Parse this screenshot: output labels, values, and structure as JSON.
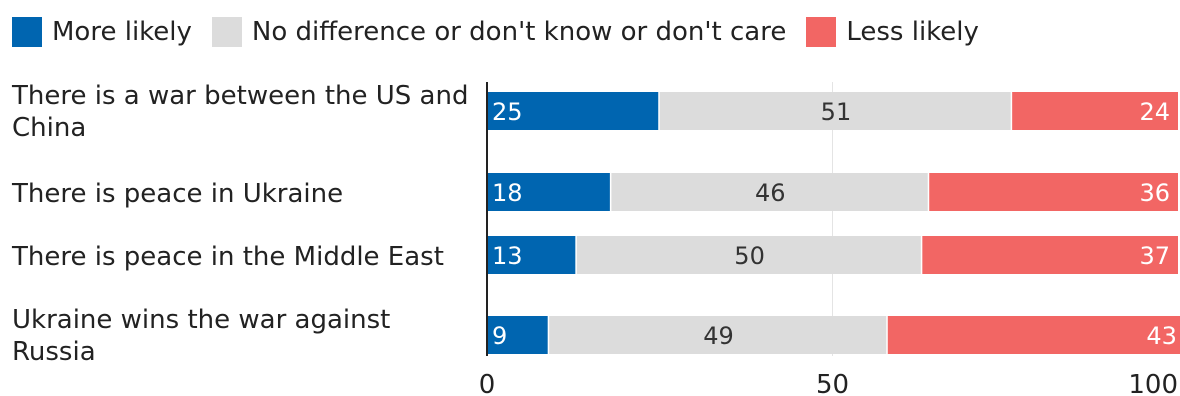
{
  "chart_data": {
    "type": "bar",
    "orientation": "horizontal",
    "stacked": true,
    "categories": [
      "There is a war between the US and China",
      "There is peace in Ukraine",
      "There is peace in the Middle East",
      "Ukraine wins the war against Russia"
    ],
    "series": [
      {
        "name": "More likely",
        "color": "#0065b0",
        "values": [
          25,
          18,
          13,
          9
        ]
      },
      {
        "name": "No difference or don't know or don't care",
        "color": "#dcdcdc",
        "values": [
          51,
          46,
          50,
          49
        ]
      },
      {
        "name": "Less likely",
        "color": "#f26664",
        "values": [
          24,
          36,
          37,
          43
        ]
      }
    ],
    "xlim": [
      0,
      100
    ],
    "xticks": [
      "0",
      "50",
      "100"
    ],
    "legend_position": "top",
    "grid": true
  }
}
